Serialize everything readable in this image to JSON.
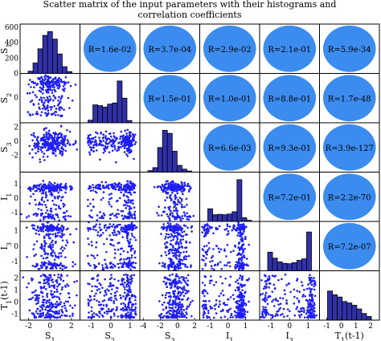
{
  "title_lines": [
    "Scatter matrix of the input parameters with their histograms and",
    "correlation coefficients"
  ],
  "colors": {
    "histogram_fill": "#3030a8",
    "histogram_edge": "#000000",
    "scatter_point": "#1f1ff5",
    "correlation_circle": "#3c8cf0",
    "background": "#ffffff"
  },
  "chart_data": {
    "type": "scatter_matrix",
    "variables": [
      "S1",
      "S2",
      "S3",
      "I1",
      "I3",
      "T1(t-1)"
    ],
    "variable_labels": [
      {
        "main": "S",
        "sub": "1",
        "suffix": ""
      },
      {
        "main": "S",
        "sub": "2",
        "suffix": ""
      },
      {
        "main": "S",
        "sub": "3",
        "suffix": ""
      },
      {
        "main": "I",
        "sub": "1",
        "suffix": ""
      },
      {
        "main": "I",
        "sub": "3",
        "suffix": ""
      },
      {
        "main": "T",
        "sub": "1",
        "suffix": "(t-1)"
      }
    ],
    "x_tick_labels": [
      [
        "-2",
        "0",
        "2"
      ],
      [
        "-1",
        "0",
        "1"
      ],
      [
        "-4",
        "-2",
        "0",
        "2"
      ],
      [
        "-1",
        "0",
        "1"
      ],
      [
        "-1",
        "0",
        "1"
      ],
      [
        "-1",
        "0",
        "1",
        "2"
      ]
    ],
    "x_ranges": [
      [
        -2.8,
        2.8
      ],
      [
        -1.6,
        1.5
      ],
      [
        -4.4,
        2.6
      ],
      [
        -1.6,
        1.8
      ],
      [
        -1.6,
        1.6
      ],
      [
        -1.5,
        2.6
      ]
    ],
    "y_tick_labels": [
      [
        "0",
        "200",
        "400",
        "600"
      ],
      [
        "-2",
        "0",
        "2"
      ],
      [
        "-2",
        "0",
        "2"
      ],
      [
        "-1",
        "0",
        "1"
      ],
      [
        "-1",
        "0",
        "1"
      ],
      [
        "-1",
        "0",
        "1",
        "2"
      ]
    ],
    "hist_counts": [
      0,
      200,
      400,
      600
    ],
    "histograms": [
      {
        "variable": "S1",
        "counts": [
          30,
          140,
          330,
          510,
          560,
          460,
          260,
          90,
          25
        ]
      },
      {
        "variable": "S2",
        "counts": [
          35,
          240,
          230,
          210,
          250,
          265,
          560,
          330,
          30
        ]
      },
      {
        "variable": "S3",
        "counts": [
          20,
          60,
          330,
          560,
          520,
          280,
          90,
          40,
          15
        ]
      },
      {
        "variable": "I1",
        "counts": [
          170,
          90,
          95,
          90,
          100,
          130,
          560,
          50,
          15
        ]
      },
      {
        "variable": "I3",
        "counts": [
          250,
          170,
          120,
          100,
          95,
          110,
          140,
          160,
          520
        ]
      },
      {
        "variable": "T1(t-1)",
        "counts": [
          390,
          340,
          310,
          250,
          230,
          200,
          150,
          90,
          50
        ]
      }
    ],
    "correlations": [
      {
        "row": 0,
        "col": 1,
        "label": "R=1.6e-02"
      },
      {
        "row": 0,
        "col": 2,
        "label": "R=3.7e-04"
      },
      {
        "row": 0,
        "col": 3,
        "label": "R=2.9e-02"
      },
      {
        "row": 0,
        "col": 4,
        "label": "R=2.1e-01"
      },
      {
        "row": 0,
        "col": 5,
        "label": "R=5.9e-34"
      },
      {
        "row": 1,
        "col": 2,
        "label": "R=1.5e-01"
      },
      {
        "row": 1,
        "col": 3,
        "label": "R=1.0e-01"
      },
      {
        "row": 1,
        "col": 4,
        "label": "R=8.8e-01"
      },
      {
        "row": 1,
        "col": 5,
        "label": "R=1.7e-48"
      },
      {
        "row": 2,
        "col": 3,
        "label": "R=6.6e-03"
      },
      {
        "row": 2,
        "col": 4,
        "label": "R=9.3e-01"
      },
      {
        "row": 2,
        "col": 5,
        "label": "R=3.9e-127"
      },
      {
        "row": 3,
        "col": 4,
        "label": "R=7.2e-01"
      },
      {
        "row": 3,
        "col": 5,
        "label": "R=2.2e-70"
      },
      {
        "row": 4,
        "col": 5,
        "label": "R=7.2e-07"
      }
    ]
  }
}
